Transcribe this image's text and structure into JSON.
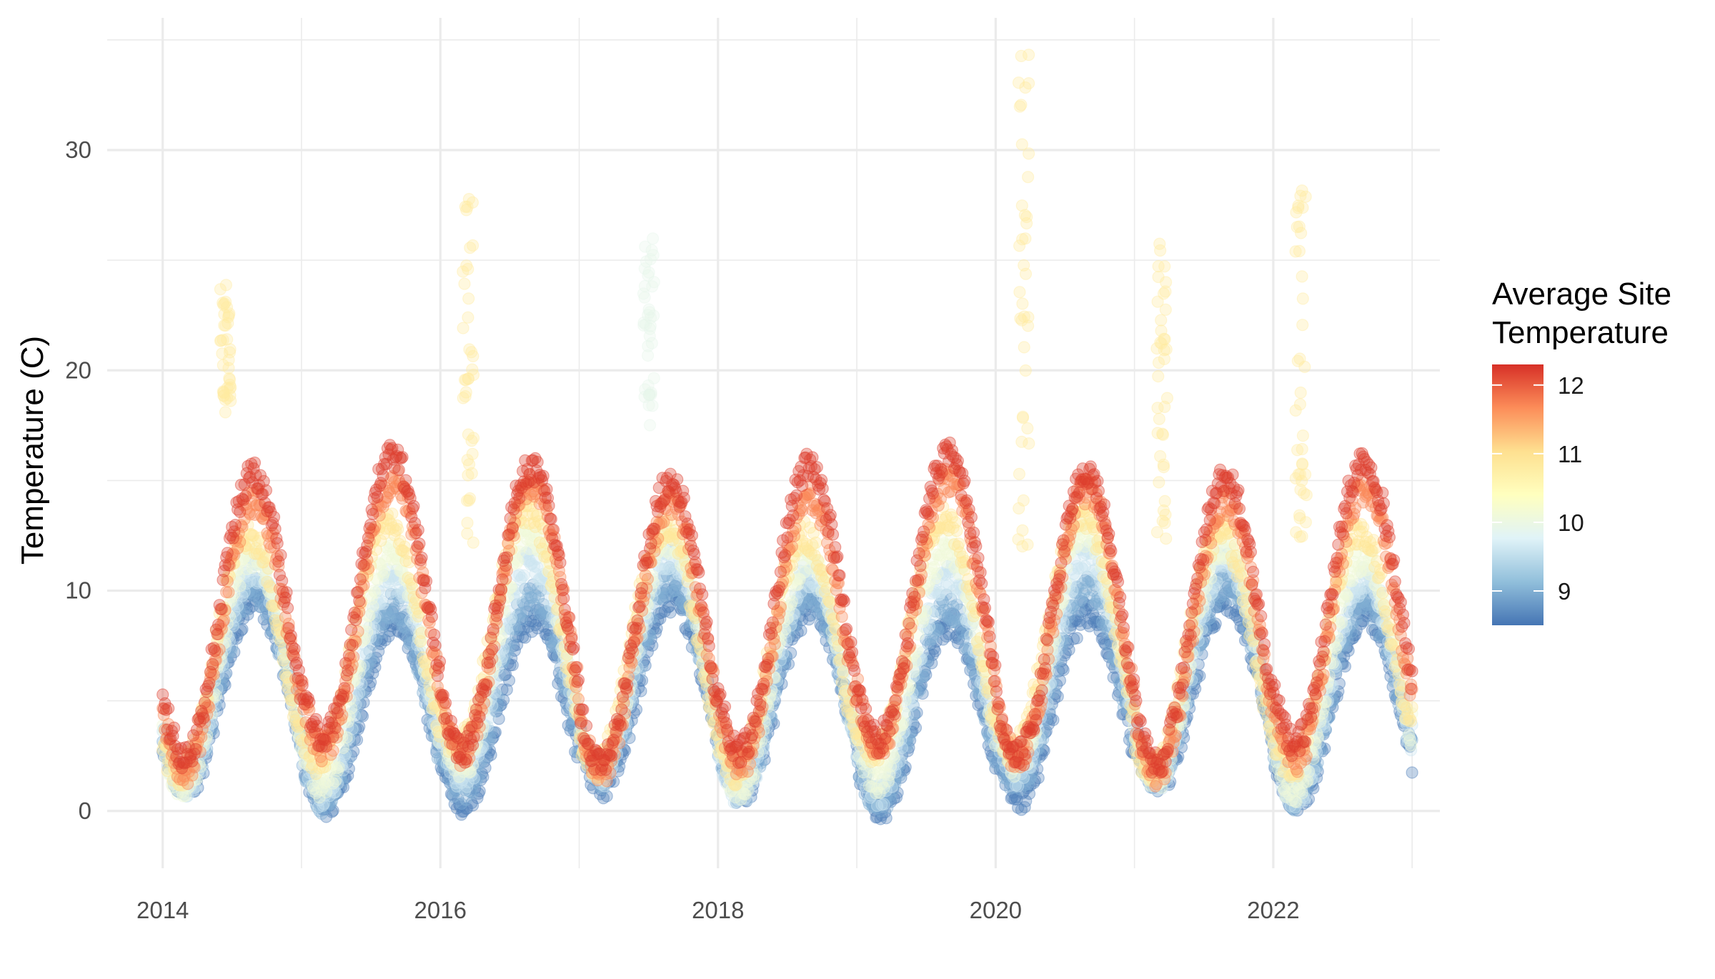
{
  "chart_data": {
    "type": "scatter",
    "title": "",
    "xlabel": "",
    "ylabel": "Temperature (C)",
    "xlim": [
      2013.6,
      2023.2
    ],
    "ylim": [
      -2.6,
      36
    ],
    "grid": true,
    "x_ticks": [
      2014,
      2016,
      2018,
      2020,
      2022
    ],
    "x_tick_labels": [
      "2014",
      "2016",
      "2018",
      "2020",
      "2022"
    ],
    "y_ticks": [
      0,
      10,
      20,
      30
    ],
    "y_tick_labels": [
      "0",
      "10",
      "20",
      "30"
    ],
    "legend": {
      "title_line1": "Average Site",
      "title_line2": "Temperature",
      "placement": "right",
      "range": [
        8.5,
        12.3
      ],
      "ticks": [
        9,
        10,
        11,
        12
      ],
      "tick_labels": [
        "9",
        "10",
        "11",
        "12"
      ],
      "colors": [
        "#4575b4",
        "#91bfdb",
        "#e0f3f8",
        "#ffffbf",
        "#fee090",
        "#fc8d59",
        "#d73027"
      ]
    },
    "series_model": {
      "x_start": 2014.0,
      "x_end": 2023.0,
      "sites": [
        {
          "site_temp": 12.2,
          "winter": 5.0,
          "amplitude": 8.3,
          "peak_phase": 0.655
        },
        {
          "site_temp": 11.7,
          "winter": 4.5,
          "amplitude": 7.9,
          "peak_phase": 0.66
        },
        {
          "site_temp": 10.9,
          "winter": 4.2,
          "amplitude": 7.0,
          "peak_phase": 0.62
        },
        {
          "site_temp": 10.1,
          "winter": 3.4,
          "amplitude": 6.8,
          "peak_phase": 0.65
        },
        {
          "site_temp": 9.6,
          "winter": 3.0,
          "amplitude": 6.4,
          "peak_phase": 0.66
        },
        {
          "site_temp": 9.0,
          "winter": 2.6,
          "amplitude": 5.7,
          "peak_phase": 0.66
        },
        {
          "site_temp": 8.6,
          "winter": 2.2,
          "amplitude": 5.4,
          "peak_phase": 0.67
        }
      ],
      "spikes": [
        {
          "x": 2014.45,
          "y_min": 18,
          "y_max": 24,
          "site_temp": 10.8
        },
        {
          "x": 2016.2,
          "y_min": 12,
          "y_max": 28.5,
          "site_temp": 10.8
        },
        {
          "x": 2017.5,
          "y_min": 17,
          "y_max": 26,
          "site_temp": 9.9
        },
        {
          "x": 2020.2,
          "y_min": 12,
          "y_max": 34.5,
          "site_temp": 10.8
        },
        {
          "x": 2021.2,
          "y_min": 12,
          "y_max": 26,
          "site_temp": 10.8
        },
        {
          "x": 2022.2,
          "y_min": 12,
          "y_max": 28.5,
          "site_temp": 10.8
        }
      ]
    }
  }
}
